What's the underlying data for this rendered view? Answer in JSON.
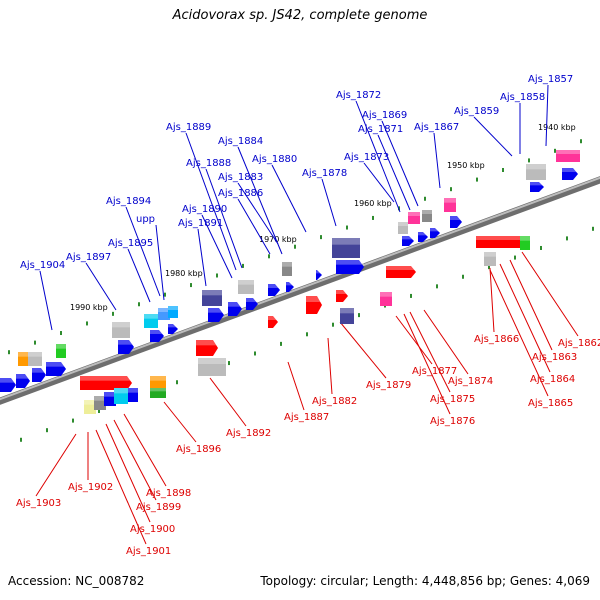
{
  "title": "Acidovorax sp. JS42, complete genome",
  "footer": {
    "accession": "Accession: NC_008782",
    "topology": "Topology: circular; Length: 4,448,856 bp; Genes: 4,069"
  },
  "colors": {
    "top_strand_label": "#0000cc",
    "bottom_strand_label": "#dd0000",
    "backbone": "#808080",
    "tick": "#2e8b2e"
  },
  "scale_labels": [
    "1940 kbp",
    "1950 kbp",
    "1960 kbp",
    "1970 kbp",
    "1980 kbp",
    "1990 kbp"
  ],
  "genes_top": [
    "Ajs_1857",
    "Ajs_1858",
    "Ajs_1859",
    "Ajs_1867",
    "Ajs_1869",
    "Ajs_1871",
    "Ajs_1872",
    "Ajs_1873",
    "Ajs_1878",
    "Ajs_1880",
    "Ajs_1883",
    "Ajs_1884",
    "Ajs_1886",
    "Ajs_1888",
    "Ajs_1889",
    "Ajs_1890",
    "Ajs_1891",
    "Ajs_1894",
    "upp",
    "Ajs_1895",
    "Ajs_1897",
    "Ajs_1904"
  ],
  "genes_bottom": [
    "Ajs_1862",
    "Ajs_1863",
    "Ajs_1864",
    "Ajs_1865",
    "Ajs_1866",
    "Ajs_1874",
    "Ajs_1875",
    "Ajs_1876",
    "Ajs_1877",
    "Ajs_1879",
    "Ajs_1882",
    "Ajs_1887",
    "Ajs_1892",
    "Ajs_1896",
    "Ajs_1898",
    "Ajs_1899",
    "Ajs_1900",
    "Ajs_1901",
    "Ajs_1902",
    "Ajs_1903"
  ]
}
